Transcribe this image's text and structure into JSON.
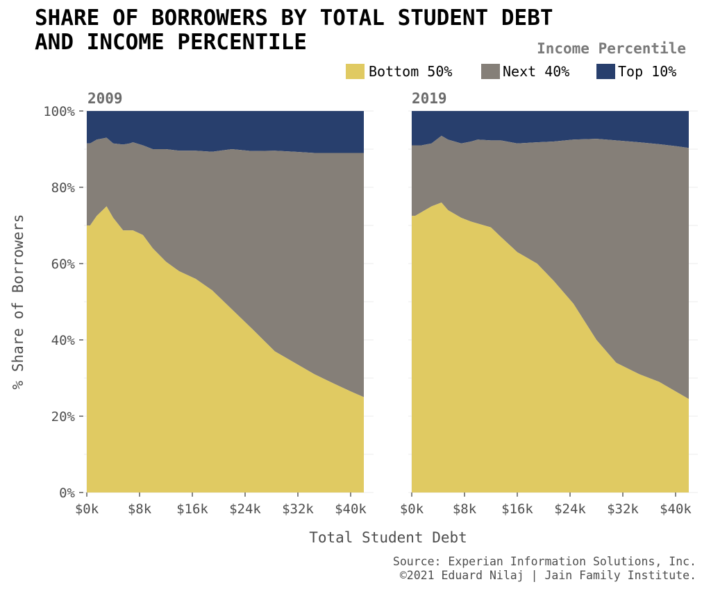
{
  "chart_data": {
    "type": "area",
    "stacked": true,
    "normalized": true,
    "title_lines": [
      "SHARE OF BORROWERS BY TOTAL STUDENT DEBT",
      "AND INCOME PERCENTILE"
    ],
    "xlabel": "Total Student Debt",
    "ylabel": "% Share of Borrowers",
    "xlim": [
      0,
      42
    ],
    "ylim": [
      0,
      100
    ],
    "x_ticks": [
      0,
      8,
      16,
      24,
      32,
      40
    ],
    "x_tick_labels": [
      "$0k",
      "$8k",
      "$16k",
      "$24k",
      "$32k",
      "$40k"
    ],
    "y_ticks": [
      0,
      20,
      40,
      60,
      80,
      100
    ],
    "y_tick_labels": [
      "0%",
      "20%",
      "40%",
      "60%",
      "80%",
      "100%"
    ],
    "legend": {
      "title": "Income Percentile",
      "placement": "top-right",
      "entries": [
        {
          "label": "Bottom 50%",
          "color": "#e0ca62"
        },
        {
          "label": "Next 40%",
          "color": "#857f78"
        },
        {
          "label": "Top 10%",
          "color": "#283f6d"
        }
      ]
    },
    "panels": [
      {
        "title": "2009",
        "x": [
          0.5,
          1.5,
          3,
          4,
          5.5,
          6.5,
          7,
          8.5,
          10,
          12,
          14,
          16.5,
          19,
          22,
          25,
          28.5,
          31.5,
          34.5,
          37.5,
          40,
          42
        ],
        "bottom_50_cum": [
          70,
          72.5,
          75,
          72,
          68.7,
          68.7,
          68.7,
          67.5,
          64,
          60.5,
          58,
          56,
          53,
          48,
          43,
          37,
          34,
          31,
          28.5,
          26.5,
          25
        ],
        "next_40_cum": [
          91.5,
          92.5,
          93,
          91.5,
          91.2,
          91.5,
          91.8,
          91,
          90,
          90,
          89.6,
          89.6,
          89.3,
          90,
          89.5,
          89.6,
          89.3,
          89,
          89,
          89,
          89
        ]
      },
      {
        "title": "2019",
        "x": [
          0.5,
          1.5,
          3,
          4.5,
          5.5,
          6.5,
          7.5,
          9,
          10,
          12,
          13.5,
          16,
          19,
          21.5,
          24.5,
          28,
          31,
          34.5,
          37.5,
          40,
          42
        ],
        "bottom_50_cum": [
          72.5,
          73.5,
          75,
          76,
          74,
          73,
          72,
          71,
          70.5,
          69.5,
          67,
          63,
          60,
          55.5,
          49.5,
          40,
          34,
          31,
          29,
          26.5,
          24.5
        ],
        "next_40_cum": [
          91,
          91,
          91.5,
          93.5,
          92.5,
          92,
          91.5,
          92,
          92.5,
          92.3,
          92.3,
          91.5,
          91.8,
          92,
          92.5,
          92.7,
          92.3,
          91.8,
          91.3,
          90.8,
          90.3
        ]
      }
    ]
  },
  "caption_lines": [
    "Source: Experian Information Solutions, Inc.",
    "©2021 Eduard Nilaj | Jain Family Institute."
  ]
}
